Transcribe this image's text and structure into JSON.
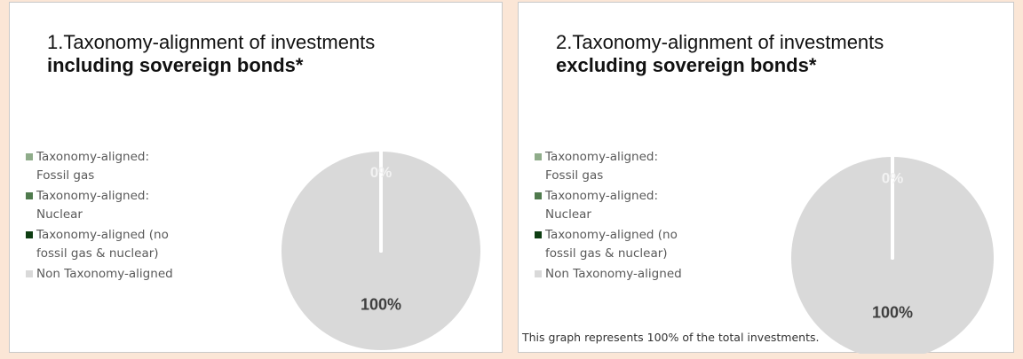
{
  "chart_data": [
    {
      "type": "pie",
      "title": "1.Taxonomy-alignment of investments",
      "title_emphasis": "including sovereign bonds*",
      "categories": [
        "Taxonomy-aligned: Fossil gas",
        "Taxonomy-aligned: Nuclear",
        "Taxonomy-aligned (no fossil gas & nuclear)",
        "Non Taxonomy-aligned"
      ],
      "values": [
        0,
        0,
        0,
        100
      ],
      "value_labels": [
        null,
        null,
        "0%",
        "100%"
      ],
      "colors": [
        "#8fac8a",
        "#4f7a4d",
        "#0e3d12",
        "#d9d9d9"
      ]
    },
    {
      "type": "pie",
      "title": "2.Taxonomy-alignment of investments",
      "title_emphasis": "excluding sovereign bonds*",
      "categories": [
        "Taxonomy-aligned: Fossil gas",
        "Taxonomy-aligned: Nuclear",
        "Taxonomy-aligned (no fossil gas & nuclear)",
        "Non Taxonomy-aligned"
      ],
      "values": [
        0,
        0,
        0,
        100
      ],
      "value_labels": [
        null,
        null,
        "0%",
        "100%"
      ],
      "colors": [
        "#8fac8a",
        "#4f7a4d",
        "#0e3d12",
        "#d9d9d9"
      ],
      "footnote": "This graph represents 100% of the total investments."
    }
  ]
}
